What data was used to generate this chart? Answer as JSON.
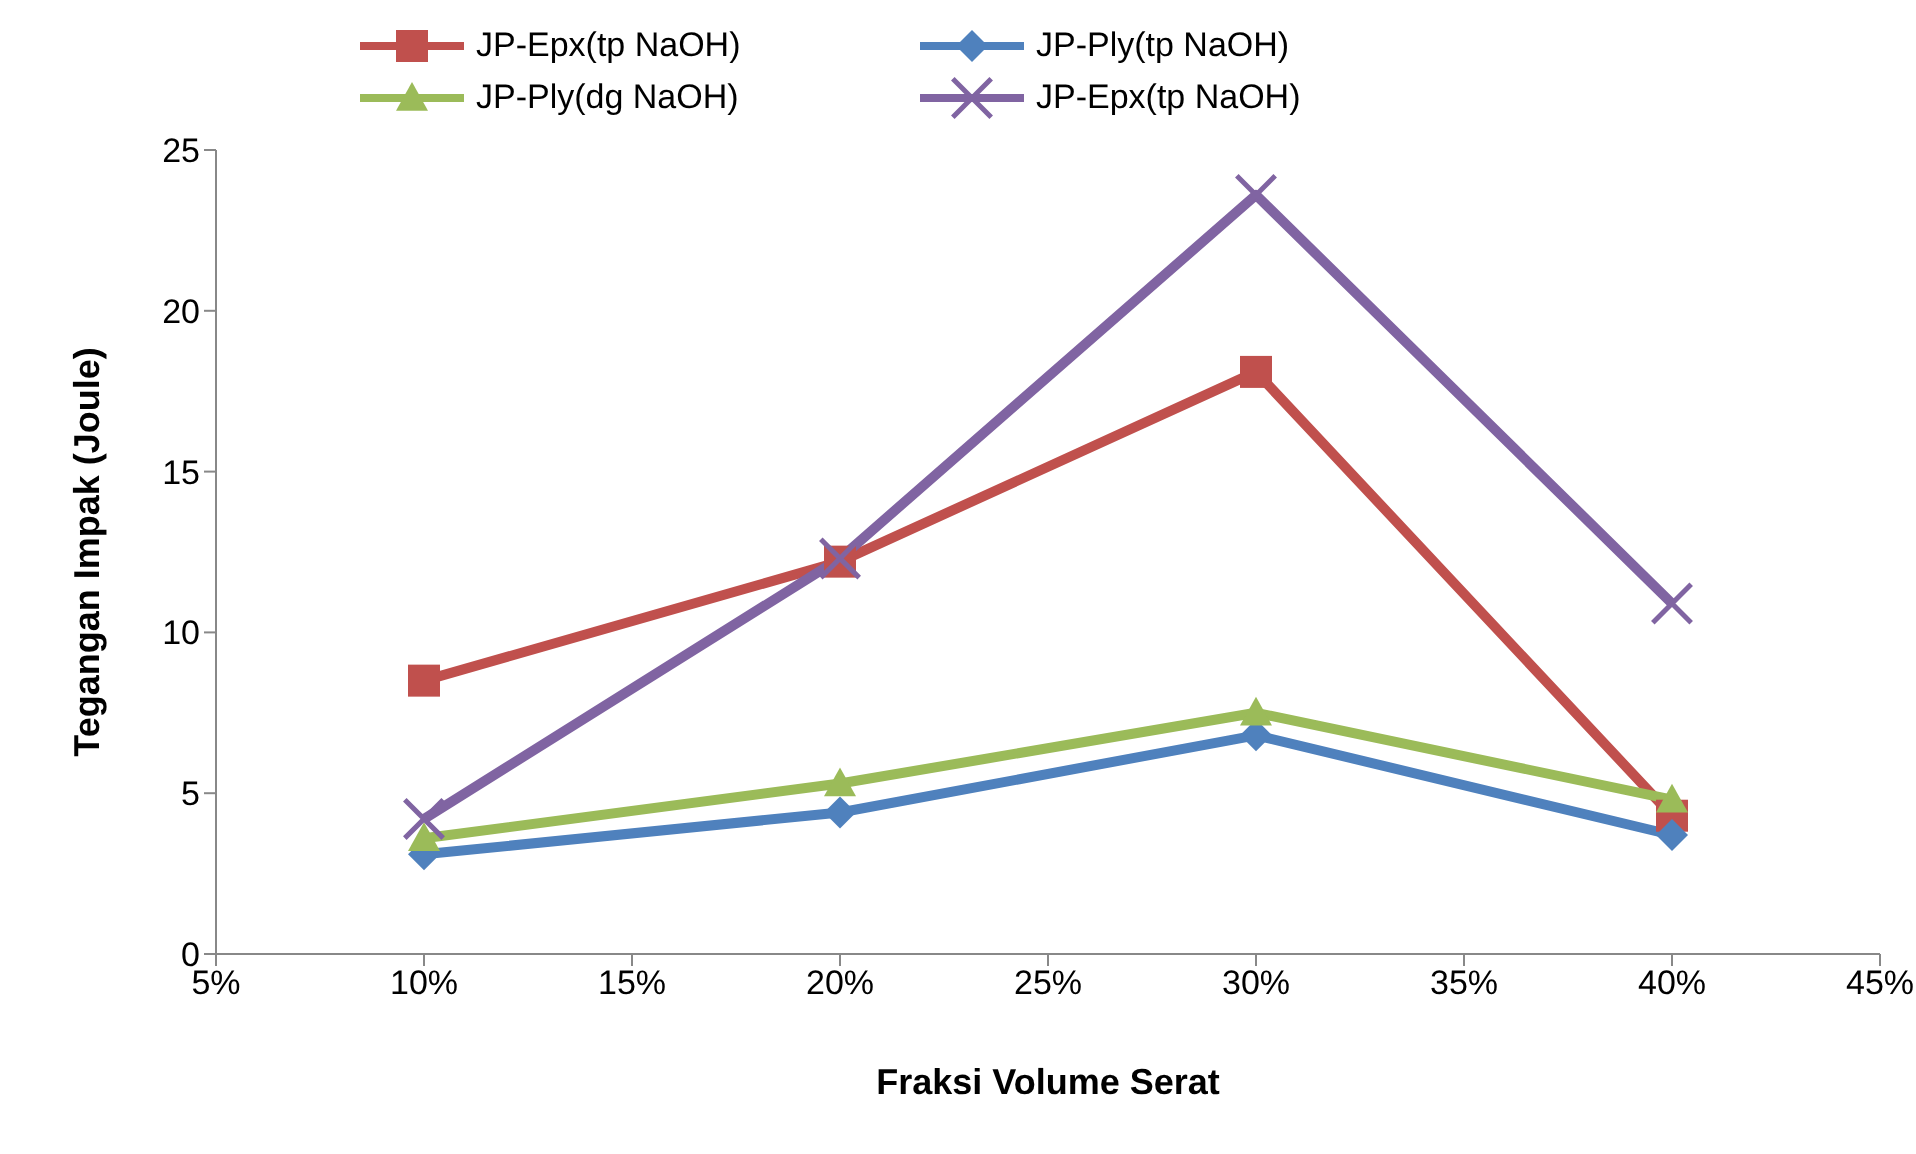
{
  "chart_data": {
    "type": "line",
    "xlabel": "Fraksi Volume Serat",
    "ylabel": "Tegangan Impak (Joule)",
    "x": [
      10,
      20,
      30,
      40
    ],
    "xlim": [
      5,
      45
    ],
    "xticks": [
      {
        "value": 5,
        "label": "5%"
      },
      {
        "value": 10,
        "label": "10%"
      },
      {
        "value": 15,
        "label": "15%"
      },
      {
        "value": 20,
        "label": "20%"
      },
      {
        "value": 25,
        "label": "25%"
      },
      {
        "value": 30,
        "label": "30%"
      },
      {
        "value": 35,
        "label": "35%"
      },
      {
        "value": 40,
        "label": "40%"
      },
      {
        "value": 45,
        "label": "45%"
      }
    ],
    "ylim": [
      0,
      25
    ],
    "yticks": [
      0,
      5,
      10,
      15,
      20,
      25
    ],
    "grid": false,
    "legend": "top",
    "line_style": "solid",
    "series": [
      {
        "name": "JP-Epx(tp NaOH)",
        "color": "#c0504d",
        "marker": "square",
        "values": [
          8.5,
          12.2,
          18.1,
          4.3
        ]
      },
      {
        "name": "JP-Ply(tp NaOH)",
        "color": "#4f81bd",
        "marker": "diamond",
        "values": [
          3.1,
          4.4,
          6.8,
          3.7
        ]
      },
      {
        "name": "JP-Ply(dg NaOH)",
        "color": "#9bbb59",
        "marker": "triangle",
        "values": [
          3.6,
          5.3,
          7.5,
          4.8
        ]
      },
      {
        "name": "JP-Epx(tp NaOH)",
        "color": "#8064a2",
        "marker": "cross",
        "values": [
          4.2,
          12.3,
          23.6,
          10.9
        ]
      }
    ]
  }
}
